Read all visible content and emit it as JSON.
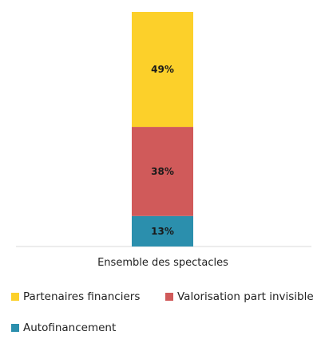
{
  "chart_data": {
    "type": "bar",
    "stacked": true,
    "categories": [
      "Ensemble des spectacles"
    ],
    "series": [
      {
        "name": "Autofinancement",
        "values": [
          13
        ],
        "label": "13%",
        "color": "#2b8fad"
      },
      {
        "name": "Valorisation part invisible",
        "values": [
          38
        ],
        "label": "38%",
        "color": "#d05a5a"
      },
      {
        "name": "Partenaires financiers",
        "values": [
          49
        ],
        "label": "49%",
        "color": "#fcd02a"
      }
    ],
    "ylim": [
      0,
      100
    ],
    "grid": false,
    "legend_position": "bottom"
  },
  "legend": [
    {
      "label": "Partenaires financiers",
      "color": "#fcd02a"
    },
    {
      "label": "Valorisation part invisible",
      "color": "#d05a5a"
    },
    {
      "label": "Autofinancement",
      "color": "#2b8fad"
    }
  ]
}
